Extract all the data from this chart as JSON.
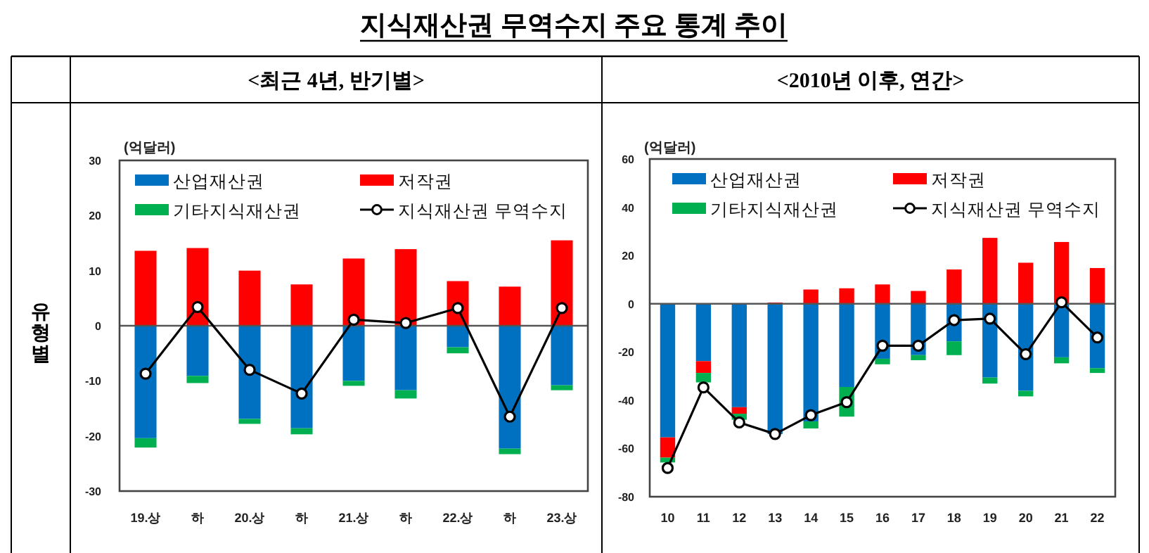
{
  "chart_data": [
    {
      "type": "bar",
      "title": "<최근 4년, 반기별>",
      "ylabel": "(억달러)",
      "annotations": [
        "지식재산권 무역수지 주요 통계 추이",
        "유형별"
      ],
      "categories": [
        "19.상",
        "하",
        "20.상",
        "하",
        "21.상",
        "하",
        "22.상",
        "하",
        "23.상"
      ],
      "stacked": true,
      "ylim": [
        -30,
        30
      ],
      "yticks": [
        -30,
        -20,
        -10,
        0,
        10,
        20,
        30
      ],
      "legend": "top",
      "marker": "circle",
      "series": [
        {
          "name": "산업재산권",
          "color": "#0070c0",
          "values": [
            -20.4,
            -9.1,
            -16.9,
            -18.6,
            -10.0,
            -11.7,
            -3.9,
            -22.3,
            -10.8
          ]
        },
        {
          "name": "저작권",
          "color": "#ff0000",
          "values": [
            13.6,
            14.1,
            10.0,
            7.5,
            12.2,
            13.9,
            8.1,
            7.1,
            15.5
          ]
        },
        {
          "name": "기타지식재산권",
          "color": "#00b050",
          "values": [
            -1.7,
            -1.3,
            -0.9,
            -1.1,
            -0.9,
            -1.5,
            -1.1,
            -1.0,
            -0.9
          ]
        },
        {
          "name": "지식재산권 무역수지",
          "type": "line",
          "color": "#000000",
          "values": [
            -8.7,
            3.4,
            -8.0,
            -12.3,
            1.1,
            0.5,
            3.2,
            -16.5,
            3.2
          ]
        }
      ]
    },
    {
      "type": "bar",
      "title": "<2010년 이후, 연간>",
      "ylabel": "(억달러)",
      "categories": [
        "10",
        "11",
        "12",
        "13",
        "14",
        "15",
        "16",
        "17",
        "18",
        "19",
        "20",
        "21",
        "22"
      ],
      "stacked": true,
      "ylim": [
        -80,
        60
      ],
      "yticks": [
        -80,
        -60,
        -40,
        -20,
        0,
        20,
        40,
        60
      ],
      "legend": "top",
      "marker": "circle",
      "series": [
        {
          "name": "산업재산권",
          "color": "#0070c0",
          "values": [
            -55.4,
            -23.8,
            -42.9,
            -54.0,
            -48.8,
            -34.5,
            -22.8,
            -21.3,
            -15.6,
            -30.6,
            -36.1,
            -22.2,
            -26.7
          ]
        },
        {
          "name": "저작권",
          "color": "#ff0000",
          "values": [
            -8.4,
            -4.9,
            -2.7,
            0.5,
            5.9,
            6.4,
            8.0,
            5.3,
            14.2,
            27.3,
            17.0,
            25.6,
            14.8
          ]
        },
        {
          "name": "기타지식재산권",
          "color": "#00b050",
          "values": [
            -2.0,
            -3.9,
            -2.5,
            null,
            -2.9,
            -12.3,
            -2.3,
            -2.1,
            -5.7,
            -2.5,
            -2.3,
            -2.5,
            -2.0
          ]
        },
        {
          "name": "지식재산권 무역수지",
          "type": "line",
          "color": "#000000",
          "values": [
            -68.1,
            -34.7,
            -49.2,
            -54.0,
            -46.2,
            -40.8,
            -17.4,
            -17.4,
            -6.8,
            -6.2,
            -20.9,
            0.6,
            -14.0
          ]
        }
      ]
    }
  ]
}
